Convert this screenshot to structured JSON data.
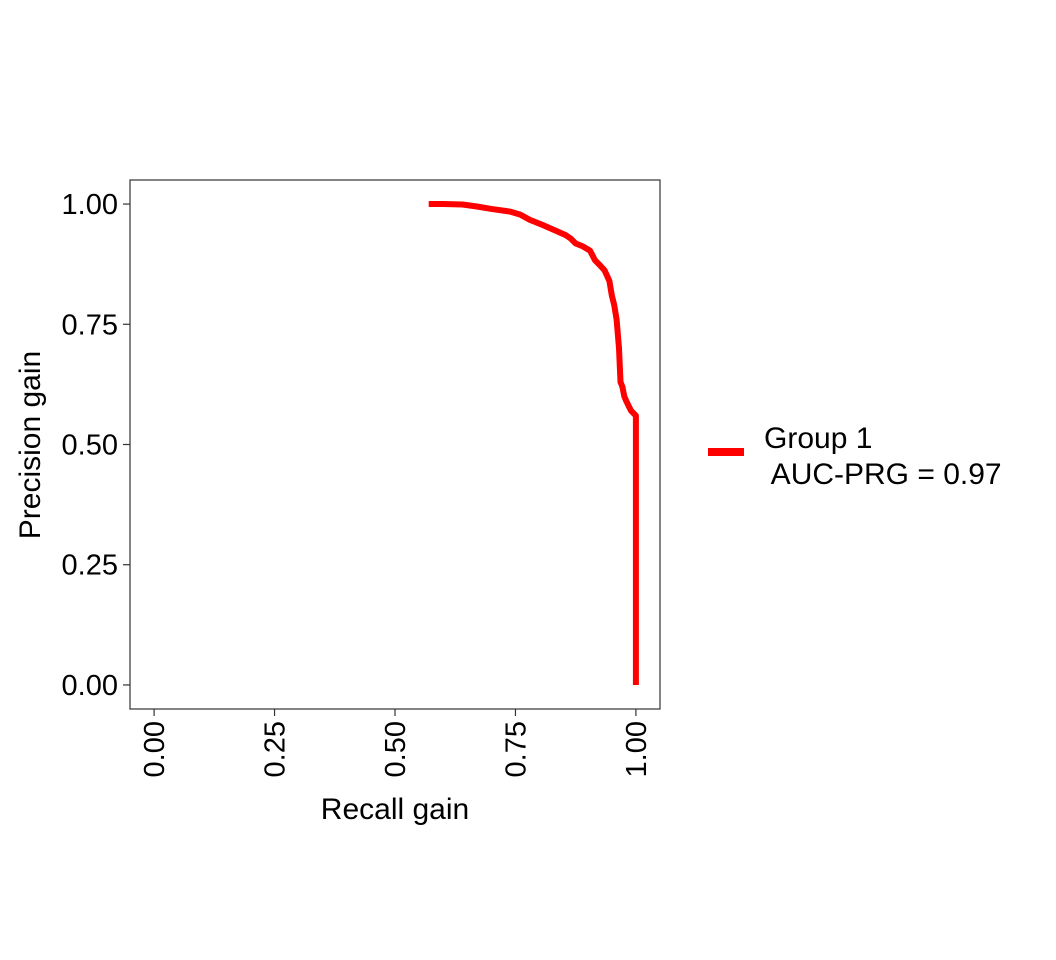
{
  "chart_data": {
    "type": "line",
    "title": "",
    "xlabel": "Recall gain",
    "ylabel": "Precision gain",
    "xlim": [
      -0.05,
      1.05
    ],
    "ylim": [
      -0.05,
      1.05
    ],
    "x_ticks": [
      0.0,
      0.25,
      0.5,
      0.75,
      1.0
    ],
    "x_tick_labels": [
      "0.00",
      "0.25",
      "0.50",
      "0.75",
      "1.00"
    ],
    "y_ticks": [
      0.0,
      0.25,
      0.5,
      0.75,
      1.0
    ],
    "y_tick_labels": [
      "0.00",
      "0.25",
      "0.50",
      "0.75",
      "1.00"
    ],
    "grid": false,
    "legend_position": "right",
    "series": [
      {
        "name": "Group 1",
        "legend_line1": "Group 1",
        "legend_line2": " AUC-PRG = 0.97",
        "color": "#ff0000",
        "x": [
          0.57,
          0.6,
          0.64,
          0.67,
          0.7,
          0.74,
          0.76,
          0.78,
          0.81,
          0.835,
          0.855,
          0.865,
          0.875,
          0.89,
          0.905,
          0.915,
          0.925,
          0.935,
          0.945,
          0.95,
          0.955,
          0.96,
          0.965,
          0.968,
          0.972,
          0.976,
          0.98,
          0.985,
          0.99,
          1.0,
          1.0
        ],
        "y": [
          1.0,
          1.0,
          0.999,
          0.995,
          0.99,
          0.984,
          0.978,
          0.967,
          0.955,
          0.944,
          0.935,
          0.928,
          0.918,
          0.912,
          0.903,
          0.883,
          0.873,
          0.862,
          0.84,
          0.81,
          0.79,
          0.76,
          0.7,
          0.63,
          0.62,
          0.6,
          0.59,
          0.58,
          0.57,
          0.56,
          0.0
        ]
      }
    ]
  }
}
